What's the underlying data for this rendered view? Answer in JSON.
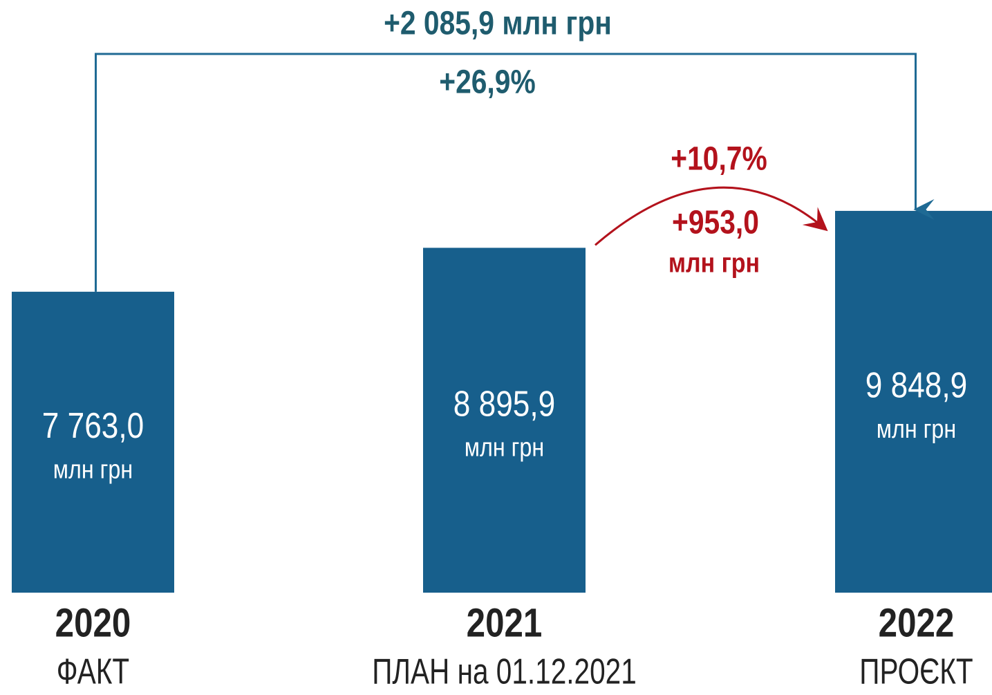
{
  "chart_data": {
    "type": "bar",
    "categories": [
      "2020",
      "2021",
      "2022"
    ],
    "category_notes": [
      "ФАКТ",
      "ПЛАН на 01.12.2021",
      "ПРОЄКТ"
    ],
    "values": [
      7763.0,
      8895.9,
      9848.9
    ],
    "value_labels": [
      "7 763,0",
      "8 895,9",
      "9 848,9"
    ],
    "unit": "млн грн",
    "color": "#175f8c",
    "annotations": [
      {
        "text": "+2 085,9 млн грн",
        "color": "#1f5c6e"
      },
      {
        "text": "+26,9%",
        "color": "#1f5c6e"
      },
      {
        "text": "+10,7%",
        "color": "#b3121c"
      },
      {
        "text": "+953,0",
        "color": "#b3121c"
      },
      {
        "text": "млн грн",
        "color": "#b3121c"
      }
    ]
  }
}
